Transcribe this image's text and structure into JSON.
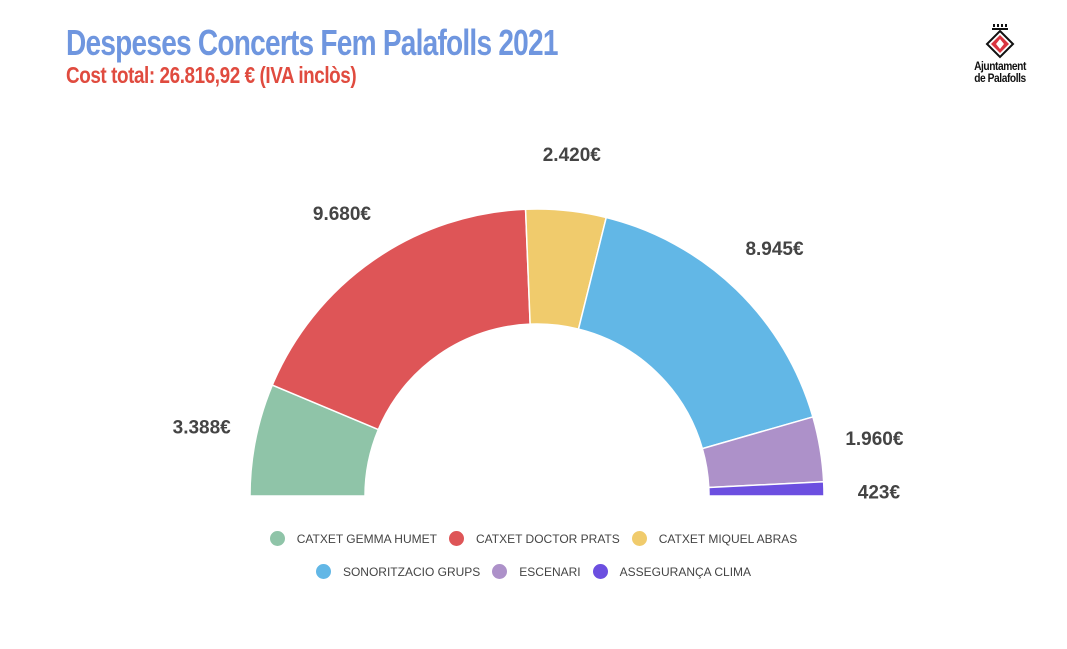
{
  "header": {
    "title": "Despeses Concerts Fem Palafolls 2021",
    "subtitle": "Cost total: 26.816,92 € (IVA inclòs)",
    "title_color": "#6f96df",
    "subtitle_color": "#e04b3f"
  },
  "logo": {
    "line1": "Ajuntament",
    "line2": "de Palafolls",
    "icon": "palafolls-coat-of-arms-icon"
  },
  "chart_data": {
    "type": "pie",
    "variant": "semi-donut",
    "title": "",
    "slices": [
      {
        "name": "CATXET GEMMA HUMET",
        "value": 3388,
        "label": "3.388€",
        "color": "#8fc4a8"
      },
      {
        "name": "CATXET DOCTOR PRATS",
        "value": 9680,
        "label": "9.680€",
        "color": "#de5557"
      },
      {
        "name": "CATXET MIQUEL ABRAS",
        "value": 2420,
        "label": "2.420€",
        "color": "#f0cb6c"
      },
      {
        "name": "SONORITZACIO GRUPS",
        "value": 8945,
        "label": "8.945€",
        "color": "#62b7e6"
      },
      {
        "name": "ESCENARI",
        "value": 1960,
        "label": "1.960€",
        "color": "#ad91c9"
      },
      {
        "name": "ASSEGURANÇA CLIMA",
        "value": 423,
        "label": "423€",
        "color": "#6c4fe0"
      }
    ],
    "legend_position": "bottom"
  }
}
